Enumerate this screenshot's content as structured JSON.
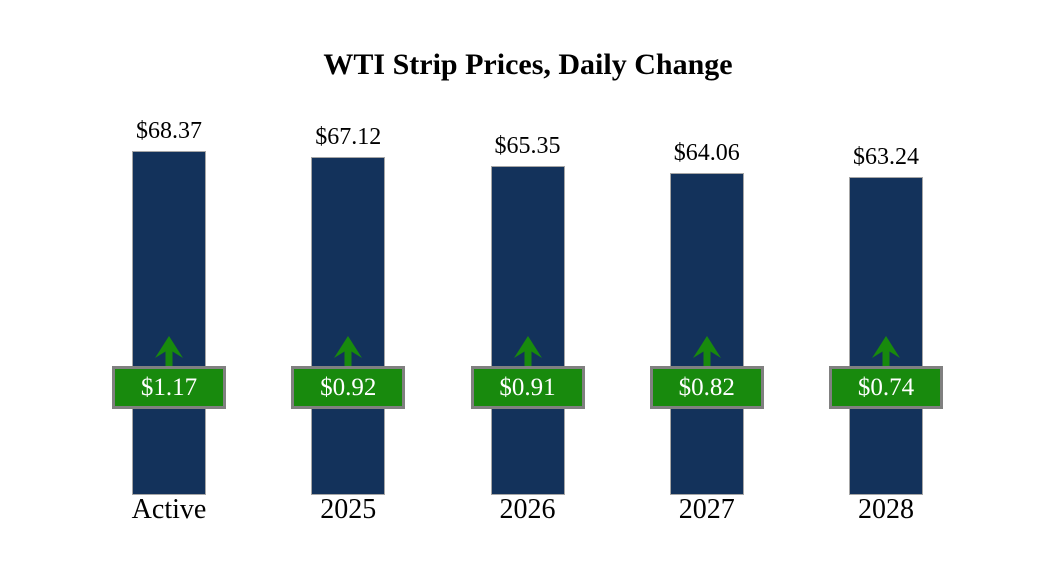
{
  "chart_data": {
    "type": "bar",
    "title": "WTI Strip Prices, Daily Change",
    "categories": [
      "Active",
      "2025",
      "2026",
      "2027",
      "2028"
    ],
    "series": [
      {
        "name": "strip_price",
        "values": [
          68.37,
          67.12,
          65.35,
          64.06,
          63.24
        ],
        "labels": [
          "$68.37",
          "$67.12",
          "$65.35",
          "$64.06",
          "$63.24"
        ]
      },
      {
        "name": "daily_change",
        "values": [
          1.17,
          0.92,
          0.91,
          0.82,
          0.74
        ],
        "labels": [
          "$1.17",
          "$0.92",
          "$0.91",
          "$0.82",
          "$0.74"
        ],
        "direction": "up"
      }
    ],
    "ylim": [
      0,
      68.37
    ],
    "grid": false,
    "legend": "none",
    "axes_shown": false,
    "colors": {
      "bar_fill": "#13325B",
      "bar_border": "#A6A6A6",
      "badge_fill": "#188A0D",
      "badge_border": "#808080",
      "badge_text": "#FFFFFF",
      "arrow": "#188A0D",
      "label_text": "#000000",
      "background": "#FFFFFF"
    }
  }
}
